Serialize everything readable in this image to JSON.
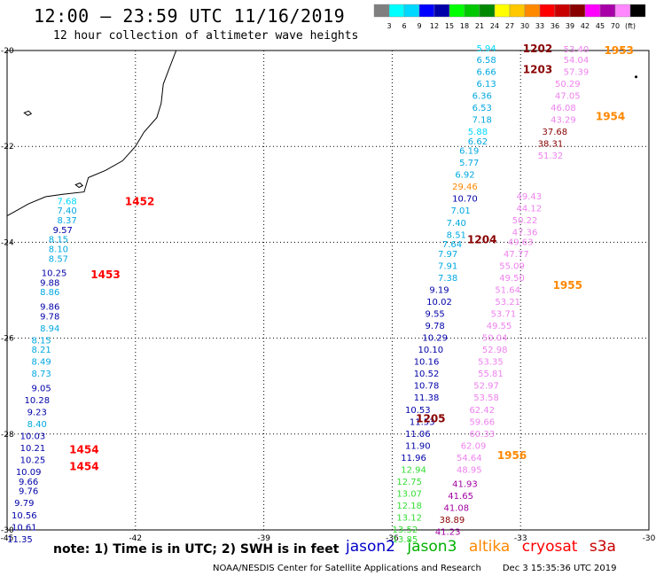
{
  "title": "12:00 – 23:59 UTC 11/16/2019",
  "subtitle": "12 hour collection of altimeter wave heights",
  "scale": {
    "colors": [
      "#7f7f7f",
      "#00ffff",
      "#00d8ff",
      "#0000ff",
      "#0000a8",
      "#00ff00",
      "#00c800",
      "#008800",
      "#ffff00",
      "#ffc800",
      "#ff8800",
      "#ff0000",
      "#c80000",
      "#880000",
      "#ff00ff",
      "#a800a8",
      "#ff88ff",
      "#000000"
    ],
    "labels": [
      "3",
      "6",
      "9",
      "12",
      "15",
      "18",
      "21",
      "24",
      "27",
      "30",
      "33",
      "36",
      "39",
      "42",
      "45",
      "70",
      "(ft)"
    ]
  },
  "axes": {
    "lon": {
      "min": -45,
      "max": -30,
      "ticks": [
        "-45",
        "-42",
        "-39",
        "-36",
        "-33",
        "-30"
      ]
    },
    "lat": {
      "min": -30,
      "max": -20,
      "ticks": [
        "-20",
        "-22",
        "-24",
        "-26",
        "-28",
        "-30"
      ]
    }
  },
  "colors": {
    "jason2": "#0000a8",
    "jason3": "#00c800",
    "altika": "#ff8800",
    "cryosat": "#ff0000",
    "s3a": "#c80000",
    "c_lightcyan": "#00d8ff",
    "c_cyan": "#00a8e0",
    "c_blue": "#0000a8",
    "c_lgreen": "#33dd33",
    "c_orange": "#ff8800",
    "c_pink": "#ee82ee",
    "c_purple": "#a000a0",
    "c_brown": "#880000",
    "c_red": "#ff0000"
  },
  "track_times": [
    {
      "text": "1202",
      "lon": -32.6,
      "lat": -19.96,
      "color": "#880000"
    },
    {
      "text": "1203",
      "lon": -32.6,
      "lat": -20.4,
      "color": "#880000"
    },
    {
      "text": "1204",
      "lon": -33.9,
      "lat": -23.95,
      "color": "#880000"
    },
    {
      "text": "1205",
      "lon": -35.1,
      "lat": -27.68,
      "color": "#880000"
    },
    {
      "text": "1452",
      "lon": -41.9,
      "lat": -23.15,
      "color": "#ff0000"
    },
    {
      "text": "1453",
      "lon": -42.7,
      "lat": -24.68,
      "color": "#ff0000"
    },
    {
      "text": "1454",
      "lon": -43.2,
      "lat": -28.33,
      "color": "#ff0000"
    },
    {
      "text": "1454",
      "lon": -43.2,
      "lat": -28.68,
      "color": "#ff0000"
    },
    {
      "text": "1953",
      "lon": -30.7,
      "lat": -20.0,
      "color": "#ff8800"
    },
    {
      "text": "1954",
      "lon": -30.9,
      "lat": -21.38,
      "color": "#ff8800"
    },
    {
      "text": "1955",
      "lon": -31.9,
      "lat": -24.9,
      "color": "#ff8800"
    },
    {
      "text": "1956",
      "lon": -33.2,
      "lat": -28.45,
      "color": "#ff8800"
    }
  ],
  "measurements": [
    {
      "v": "7.68",
      "lon": -43.6,
      "lat": -23.15,
      "c": "c_lightcyan"
    },
    {
      "v": "7.40",
      "lon": -43.6,
      "lat": -23.35,
      "c": "c_cyan"
    },
    {
      "v": "8.37",
      "lon": -43.6,
      "lat": -23.55,
      "c": "c_cyan"
    },
    {
      "v": "9.57",
      "lon": -43.7,
      "lat": -23.75,
      "c": "c_blue"
    },
    {
      "v": "8.15",
      "lon": -43.8,
      "lat": -23.95,
      "c": "c_cyan"
    },
    {
      "v": "8.10",
      "lon": -43.8,
      "lat": -24.15,
      "c": "c_cyan"
    },
    {
      "v": "8.57",
      "lon": -43.8,
      "lat": -24.35,
      "c": "c_cyan"
    },
    {
      "v": "10.25",
      "lon": -43.9,
      "lat": -24.65,
      "c": "c_blue"
    },
    {
      "v": "9.88",
      "lon": -44.0,
      "lat": -24.85,
      "c": "c_blue"
    },
    {
      "v": "8.86",
      "lon": -44.0,
      "lat": -25.05,
      "c": "c_cyan"
    },
    {
      "v": "9.86",
      "lon": -44.0,
      "lat": -25.35,
      "c": "c_blue"
    },
    {
      "v": "9.78",
      "lon": -44.0,
      "lat": -25.55,
      "c": "c_blue"
    },
    {
      "v": "8.94",
      "lon": -44.0,
      "lat": -25.8,
      "c": "c_cyan"
    },
    {
      "v": "8.15",
      "lon": -44.2,
      "lat": -26.05,
      "c": "c_cyan"
    },
    {
      "v": "8.21",
      "lon": -44.2,
      "lat": -26.25,
      "c": "c_cyan"
    },
    {
      "v": "8.49",
      "lon": -44.2,
      "lat": -26.5,
      "c": "c_cyan"
    },
    {
      "v": "8.73",
      "lon": -44.2,
      "lat": -26.75,
      "c": "c_cyan"
    },
    {
      "v": "9.05",
      "lon": -44.2,
      "lat": -27.05,
      "c": "c_blue"
    },
    {
      "v": "10.28",
      "lon": -44.3,
      "lat": -27.3,
      "c": "c_blue"
    },
    {
      "v": "9.23",
      "lon": -44.3,
      "lat": -27.55,
      "c": "c_blue"
    },
    {
      "v": "8.40",
      "lon": -44.3,
      "lat": -27.8,
      "c": "c_cyan"
    },
    {
      "v": "10.03",
      "lon": -44.4,
      "lat": -28.05,
      "c": "c_blue"
    },
    {
      "v": "10.21",
      "lon": -44.4,
      "lat": -28.3,
      "c": "c_blue"
    },
    {
      "v": "10.25",
      "lon": -44.4,
      "lat": -28.55,
      "c": "c_blue"
    },
    {
      "v": "10.09",
      "lon": -44.5,
      "lat": -28.8,
      "c": "c_blue"
    },
    {
      "v": "9.66",
      "lon": -44.5,
      "lat": -29.0,
      "c": "c_blue"
    },
    {
      "v": "9.76",
      "lon": -44.5,
      "lat": -29.2,
      "c": "c_blue"
    },
    {
      "v": "9.79",
      "lon": -44.6,
      "lat": -29.45,
      "c": "c_blue"
    },
    {
      "v": "10.56",
      "lon": -44.6,
      "lat": -29.7,
      "c": "c_blue"
    },
    {
      "v": "10.61",
      "lon": -44.6,
      "lat": -29.95,
      "c": "c_blue"
    },
    {
      "v": "11.35",
      "lon": -44.7,
      "lat": -30.2,
      "c": "c_blue"
    },
    {
      "v": "5.94",
      "lon": -33.8,
      "lat": -19.96,
      "c": "c_lightcyan"
    },
    {
      "v": "6.58",
      "lon": -33.8,
      "lat": -20.2,
      "c": "c_cyan"
    },
    {
      "v": "6.66",
      "lon": -33.8,
      "lat": -20.45,
      "c": "c_cyan"
    },
    {
      "v": "6.13",
      "lon": -33.8,
      "lat": -20.7,
      "c": "c_cyan"
    },
    {
      "v": "6.36",
      "lon": -33.9,
      "lat": -20.95,
      "c": "c_cyan"
    },
    {
      "v": "6.53",
      "lon": -33.9,
      "lat": -21.2,
      "c": "c_cyan"
    },
    {
      "v": "7.18",
      "lon": -33.9,
      "lat": -21.45,
      "c": "c_cyan"
    },
    {
      "v": "5.88",
      "lon": -34.0,
      "lat": -21.7,
      "c": "c_lightcyan"
    },
    {
      "v": "6.62",
      "lon": -34.0,
      "lat": -21.9,
      "c": "c_cyan"
    },
    {
      "v": "6.19",
      "lon": -34.2,
      "lat": -22.1,
      "c": "c_cyan"
    },
    {
      "v": "5.77",
      "lon": -34.2,
      "lat": -22.35,
      "c": "c_cyan"
    },
    {
      "v": "6.92",
      "lon": -34.3,
      "lat": -22.6,
      "c": "c_cyan"
    },
    {
      "v": "29.46",
      "lon": -34.3,
      "lat": -22.85,
      "c": "c_orange"
    },
    {
      "v": "10.70",
      "lon": -34.3,
      "lat": -23.1,
      "c": "c_blue"
    },
    {
      "v": "7.01",
      "lon": -34.4,
      "lat": -23.35,
      "c": "c_cyan"
    },
    {
      "v": "7.40",
      "lon": -34.5,
      "lat": -23.6,
      "c": "c_cyan"
    },
    {
      "v": "8.51",
      "lon": -34.5,
      "lat": -23.85,
      "c": "c_cyan"
    },
    {
      "v": "7.64",
      "lon": -34.6,
      "lat": -24.05,
      "c": "c_cyan"
    },
    {
      "v": "7.97",
      "lon": -34.7,
      "lat": -24.25,
      "c": "c_cyan"
    },
    {
      "v": "7.91",
      "lon": -34.7,
      "lat": -24.5,
      "c": "c_cyan"
    },
    {
      "v": "7.38",
      "lon": -34.7,
      "lat": -24.75,
      "c": "c_cyan"
    },
    {
      "v": "9.19",
      "lon": -34.9,
      "lat": -25.0,
      "c": "c_blue"
    },
    {
      "v": "10.02",
      "lon": -34.9,
      "lat": -25.25,
      "c": "c_blue"
    },
    {
      "v": "9.55",
      "lon": -35.0,
      "lat": -25.5,
      "c": "c_blue"
    },
    {
      "v": "9.78",
      "lon": -35.0,
      "lat": -25.75,
      "c": "c_blue"
    },
    {
      "v": "10.29",
      "lon": -35.0,
      "lat": -26.0,
      "c": "c_blue"
    },
    {
      "v": "10.10",
      "lon": -35.1,
      "lat": -26.25,
      "c": "c_blue"
    },
    {
      "v": "10.16",
      "lon": -35.2,
      "lat": -26.5,
      "c": "c_blue"
    },
    {
      "v": "10.52",
      "lon": -35.2,
      "lat": -26.75,
      "c": "c_blue"
    },
    {
      "v": "10.78",
      "lon": -35.2,
      "lat": -27.0,
      "c": "c_blue"
    },
    {
      "v": "11.38",
      "lon": -35.2,
      "lat": -27.25,
      "c": "c_blue"
    },
    {
      "v": "10.53",
      "lon": -35.4,
      "lat": -27.5,
      "c": "c_blue"
    },
    {
      "v": "11.53",
      "lon": -35.3,
      "lat": -27.75,
      "c": "c_blue"
    },
    {
      "v": "11.06",
      "lon": -35.4,
      "lat": -28.0,
      "c": "c_blue"
    },
    {
      "v": "11.90",
      "lon": -35.4,
      "lat": -28.25,
      "c": "c_blue"
    },
    {
      "v": "11.96",
      "lon": -35.5,
      "lat": -28.5,
      "c": "c_blue"
    },
    {
      "v": "12.94",
      "lon": -35.5,
      "lat": -28.75,
      "c": "c_lgreen"
    },
    {
      "v": "12.75",
      "lon": -35.6,
      "lat": -29.0,
      "c": "c_lgreen"
    },
    {
      "v": "13.07",
      "lon": -35.6,
      "lat": -29.25,
      "c": "c_lgreen"
    },
    {
      "v": "12.18",
      "lon": -35.6,
      "lat": -29.5,
      "c": "c_lgreen"
    },
    {
      "v": "13.12",
      "lon": -35.6,
      "lat": -29.75,
      "c": "c_lgreen"
    },
    {
      "v": "13.52",
      "lon": -35.7,
      "lat": -30.0,
      "c": "c_lgreen"
    },
    {
      "v": "13.85",
      "lon": -35.7,
      "lat": -30.2,
      "c": "c_lgreen"
    },
    {
      "v": "53.40",
      "lon": -31.7,
      "lat": -19.98,
      "c": "c_pink"
    },
    {
      "v": "54.04",
      "lon": -31.7,
      "lat": -20.2,
      "c": "c_pink"
    },
    {
      "v": "57.39",
      "lon": -31.7,
      "lat": -20.45,
      "c": "c_pink"
    },
    {
      "v": "50.29",
      "lon": -31.9,
      "lat": -20.7,
      "c": "c_pink"
    },
    {
      "v": "47.05",
      "lon": -31.9,
      "lat": -20.95,
      "c": "c_pink"
    },
    {
      "v": "46.08",
      "lon": -32.0,
      "lat": -21.2,
      "c": "c_pink"
    },
    {
      "v": "43.29",
      "lon": -32.0,
      "lat": -21.45,
      "c": "c_pink"
    },
    {
      "v": "37.68",
      "lon": -32.2,
      "lat": -21.7,
      "c": "c_brown"
    },
    {
      "v": "38.31",
      "lon": -32.3,
      "lat": -21.95,
      "c": "c_brown"
    },
    {
      "v": "51.32",
      "lon": -32.3,
      "lat": -22.2,
      "c": "c_pink"
    },
    {
      "v": "49.43",
      "lon": -32.8,
      "lat": -23.05,
      "c": "c_pink"
    },
    {
      "v": "44.12",
      "lon": -32.8,
      "lat": -23.3,
      "c": "c_pink"
    },
    {
      "v": "50.22",
      "lon": -32.9,
      "lat": -23.55,
      "c": "c_pink"
    },
    {
      "v": "47.36",
      "lon": -32.9,
      "lat": -23.8,
      "c": "c_pink"
    },
    {
      "v": "49.63",
      "lon": -33.0,
      "lat": -24.0,
      "c": "c_pink"
    },
    {
      "v": "47.77",
      "lon": -33.1,
      "lat": -24.25,
      "c": "c_pink"
    },
    {
      "v": "55.09",
      "lon": -33.2,
      "lat": -24.5,
      "c": "c_pink"
    },
    {
      "v": "49.50",
      "lon": -33.2,
      "lat": -24.75,
      "c": "c_pink"
    },
    {
      "v": "51.64",
      "lon": -33.3,
      "lat": -25.0,
      "c": "c_pink"
    },
    {
      "v": "53.21",
      "lon": -33.3,
      "lat": -25.25,
      "c": "c_pink"
    },
    {
      "v": "53.71",
      "lon": -33.4,
      "lat": -25.5,
      "c": "c_pink"
    },
    {
      "v": "49.55",
      "lon": -33.5,
      "lat": -25.75,
      "c": "c_pink"
    },
    {
      "v": "50.04",
      "lon": -33.6,
      "lat": -26.0,
      "c": "c_pink"
    },
    {
      "v": "52.98",
      "lon": -33.6,
      "lat": -26.25,
      "c": "c_pink"
    },
    {
      "v": "53.35",
      "lon": -33.7,
      "lat": -26.5,
      "c": "c_pink"
    },
    {
      "v": "55.81",
      "lon": -33.7,
      "lat": -26.75,
      "c": "c_pink"
    },
    {
      "v": "52.97",
      "lon": -33.8,
      "lat": -27.0,
      "c": "c_pink"
    },
    {
      "v": "53.58",
      "lon": -33.8,
      "lat": -27.25,
      "c": "c_pink"
    },
    {
      "v": "62.42",
      "lon": -33.9,
      "lat": -27.5,
      "c": "c_pink"
    },
    {
      "v": "59.66",
      "lon": -33.9,
      "lat": -27.75,
      "c": "c_pink"
    },
    {
      "v": "60.33",
      "lon": -33.9,
      "lat": -28.0,
      "c": "c_pink"
    },
    {
      "v": "62.09",
      "lon": -34.1,
      "lat": -28.25,
      "c": "c_pink"
    },
    {
      "v": "54.64",
      "lon": -34.2,
      "lat": -28.5,
      "c": "c_pink"
    },
    {
      "v": "48.95",
      "lon": -34.2,
      "lat": -28.75,
      "c": "c_pink"
    },
    {
      "v": "41.93",
      "lon": -34.3,
      "lat": -29.05,
      "c": "c_purple"
    },
    {
      "v": "41.65",
      "lon": -34.4,
      "lat": -29.3,
      "c": "c_purple"
    },
    {
      "v": "41.08",
      "lon": -34.5,
      "lat": -29.55,
      "c": "c_purple"
    },
    {
      "v": "38.89",
      "lon": -34.6,
      "lat": -29.8,
      "c": "c_brown"
    },
    {
      "v": "41.23",
      "lon": -34.7,
      "lat": -30.05,
      "c": "c_purple"
    }
  ],
  "note": "note: 1) Time is in UTC; 2) SWH is in feet",
  "legend": [
    {
      "label": "jason2",
      "color": "#0000c8"
    },
    {
      "label": "jason3",
      "color": "#00b000"
    },
    {
      "label": "altika",
      "color": "#ff8800"
    },
    {
      "label": "cryosat",
      "color": "#ff0000"
    },
    {
      "label": "s3a",
      "color": "#c80000"
    }
  ],
  "credit": {
    "org": "NOAA/NESDIS Center for Satellite Applications and Research",
    "stamp": "Dec  3 15:35:36 UTC 2019"
  }
}
